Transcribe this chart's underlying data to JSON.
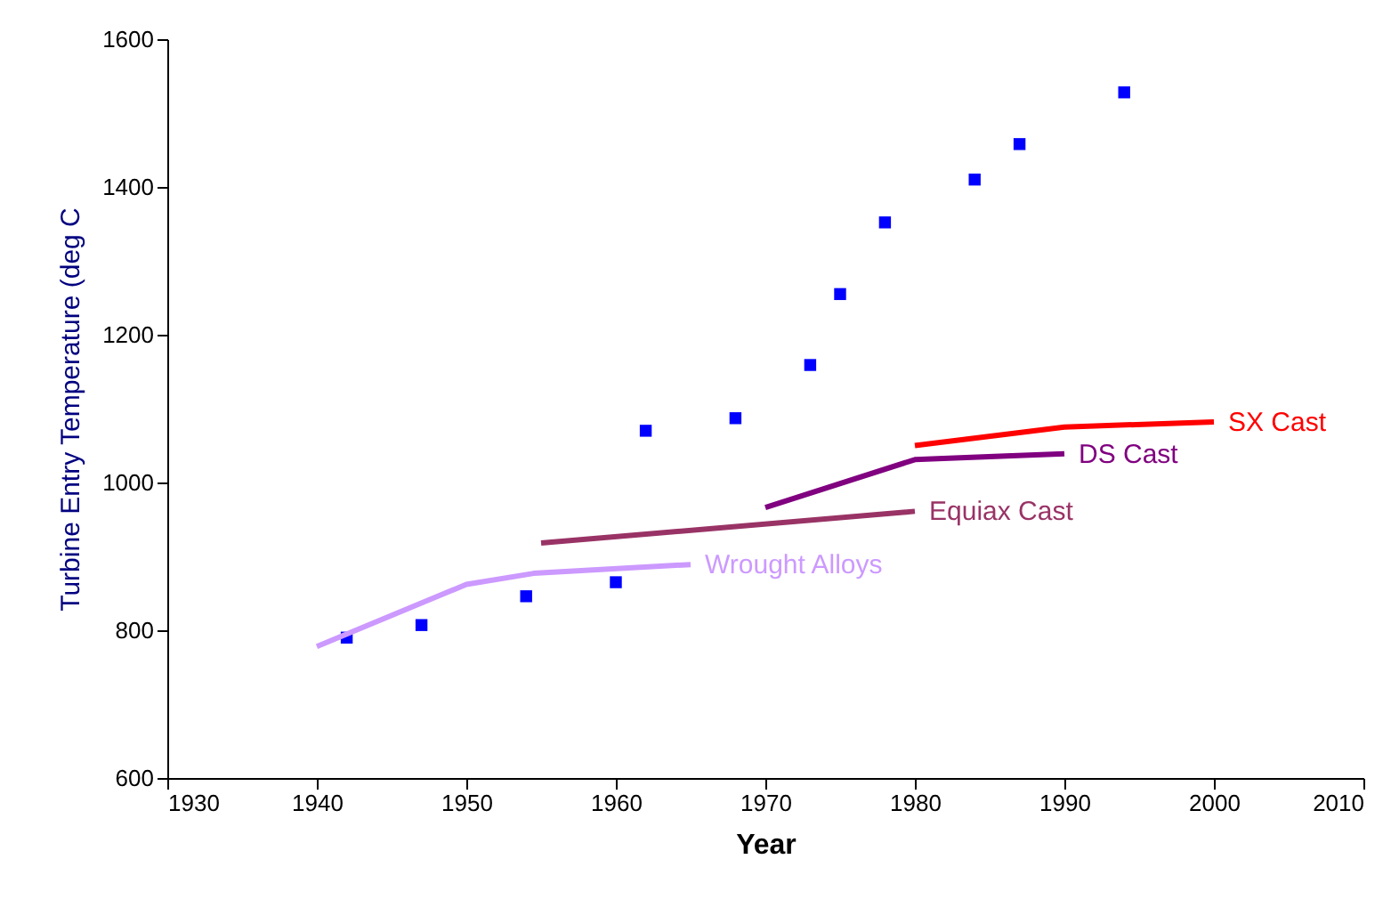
{
  "chart_data": {
    "type": "line",
    "xlabel": "Year",
    "ylabel": "Turbine Entry Temperature (deg C",
    "xlim": [
      1930,
      2010
    ],
    "xticks": [
      1930,
      1940,
      1950,
      1960,
      1970,
      1980,
      1990,
      2000,
      2010
    ],
    "ylim": [
      600,
      1600
    ],
    "yticks": [
      600,
      800,
      1000,
      1200,
      1400,
      1600
    ],
    "grid": false,
    "legend": false,
    "series": [
      {
        "type": "scatter",
        "marker": "square",
        "color": "#0000ff",
        "x": [
          1942,
          1947,
          1954,
          1960,
          1962,
          1968,
          1973,
          1975,
          1978,
          1984,
          1987,
          1994
        ],
        "values": [
          790,
          807,
          846,
          865,
          1070,
          1087,
          1159,
          1255,
          1352,
          1410,
          1458,
          1528
        ]
      },
      {
        "name": "Wrought Alloys",
        "color": "#cc99ff",
        "x": [
          1940,
          1950,
          1954.5,
          1965
        ],
        "values": [
          778,
          862,
          877,
          889
        ]
      },
      {
        "name": "Equiax Cast",
        "color": "#993366",
        "x": [
          1955,
          1980
        ],
        "values": [
          918,
          961
        ]
      },
      {
        "name": "DS Cast",
        "color": "#800080",
        "x": [
          1970,
          1980,
          1990
        ],
        "values": [
          966,
          1031,
          1039
        ]
      },
      {
        "name": "SX Cast",
        "color": "#ff0000",
        "x": [
          1980,
          1990,
          2000
        ],
        "values": [
          1050,
          1075,
          1082
        ]
      }
    ]
  }
}
